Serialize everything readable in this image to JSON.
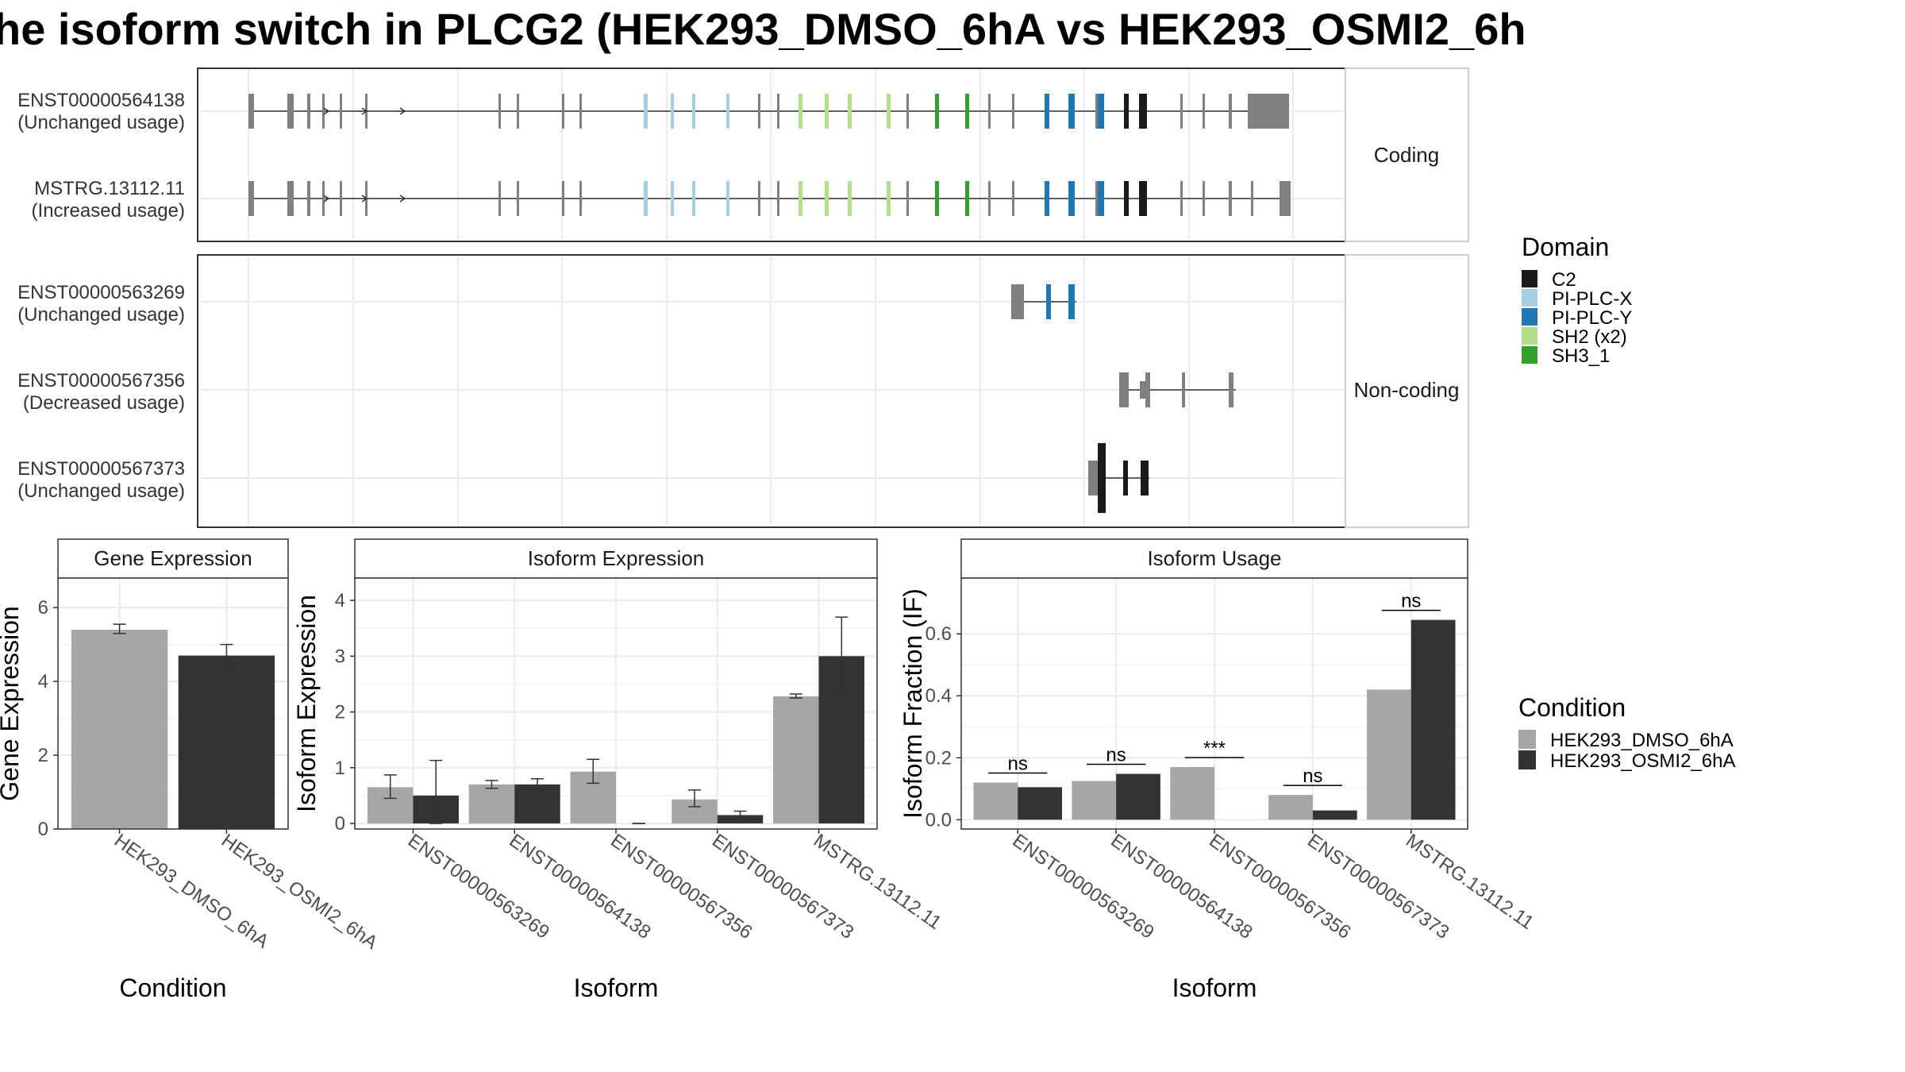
{
  "title": "he isoform switch in PLCG2 (HEK293_DMSO_6hA vs HEK293_OSMI2_6h",
  "colors": {
    "exon_default": "#808080",
    "C2": "#1a1a1a",
    "PI-PLC-X": "#a6cee3",
    "PI-PLC-Y": "#1f78b4",
    "SH2 (x2)": "#b2df8a",
    "SH3_1": "#33a02c",
    "HEK293_DMSO_6hA": "#a6a6a6",
    "HEK293_OSMI2_6hA": "#333333"
  },
  "structure": {
    "coding_label": "Coding",
    "noncoding_label": "Non-coding",
    "transcripts": [
      {
        "id": "ENST00000564138",
        "usage": "(Unchanged usage)",
        "group": "coding"
      },
      {
        "id": "MSTRG.13112.11",
        "usage": "(Increased usage)",
        "group": "coding"
      },
      {
        "id": "ENST00000563269",
        "usage": "(Unchanged usage)",
        "group": "noncoding"
      },
      {
        "id": "ENST00000567356",
        "usage": "(Decreased usage)",
        "group": "noncoding"
      },
      {
        "id": "ENST00000567373",
        "usage": "(Unchanged usage)",
        "group": "noncoding"
      }
    ]
  },
  "legend_domain": {
    "title": "Domain",
    "items": [
      "C2",
      "PI-PLC-X",
      "PI-PLC-Y",
      "SH2 (x2)",
      "SH3_1"
    ]
  },
  "legend_condition": {
    "title": "Condition",
    "items": [
      "HEK293_DMSO_6hA",
      "HEK293_OSMI2_6hA"
    ]
  },
  "chart_data": [
    {
      "type": "bar",
      "title": "Gene Expression",
      "xlabel": "Condition",
      "ylabel": "Gene Expression",
      "ylim": [
        0,
        6.8
      ],
      "yticks": [
        0,
        2,
        4,
        6
      ],
      "categories": [
        "HEK293_DMSO_6hA",
        "HEK293_OSMI2_6hA"
      ],
      "values": [
        5.4,
        4.7
      ],
      "errors": [
        [
          5.3,
          5.55
        ],
        [
          4.4,
          5.0
        ]
      ]
    },
    {
      "type": "bar",
      "title": "Isoform Expression",
      "xlabel": "Isoform",
      "ylabel": "Isoform Expression",
      "ylim": [
        -0.1,
        4.4
      ],
      "yticks": [
        0,
        1,
        2,
        3,
        4
      ],
      "categories": [
        "ENST00000563269",
        "ENST00000564138",
        "ENST00000567356",
        "ENST00000567373",
        "MSTRG.13112.11"
      ],
      "series": [
        {
          "name": "HEK293_DMSO_6hA",
          "values": [
            0.65,
            0.7,
            0.93,
            0.43,
            2.28
          ],
          "errors": [
            [
              0.45,
              0.87
            ],
            [
              0.63,
              0.77
            ],
            [
              0.72,
              1.15
            ],
            [
              0.3,
              0.6
            ],
            [
              2.25,
              2.32
            ]
          ]
        },
        {
          "name": "HEK293_OSMI2_6hA",
          "values": [
            0.5,
            0.7,
            0.0,
            0.15,
            3.0
          ],
          "errors": [
            [
              0.0,
              1.13
            ],
            [
              0.6,
              0.8
            ],
            [
              0.0,
              0.0
            ],
            [
              0.08,
              0.22
            ],
            [
              2.28,
              3.7
            ]
          ]
        }
      ]
    },
    {
      "type": "bar",
      "title": "Isoform Usage",
      "xlabel": "Isoform",
      "ylabel": "Isoform Fraction (IF)",
      "ylim": [
        -0.03,
        0.78
      ],
      "yticks": [
        0.0,
        0.2,
        0.4,
        0.6
      ],
      "ytick_labels": [
        "0.0",
        "0.2",
        "0.4",
        "0.6"
      ],
      "categories": [
        "ENST00000563269",
        "ENST00000564138",
        "ENST00000567356",
        "ENST00000567373",
        "MSTRG.13112.11"
      ],
      "series": [
        {
          "name": "HEK293_DMSO_6hA",
          "values": [
            0.12,
            0.125,
            0.17,
            0.08,
            0.42
          ]
        },
        {
          "name": "HEK293_OSMI2_6hA",
          "values": [
            0.105,
            0.148,
            0.0,
            0.03,
            0.645
          ]
        }
      ],
      "significance": [
        "ns",
        "ns",
        "***",
        "ns",
        "ns"
      ]
    }
  ]
}
